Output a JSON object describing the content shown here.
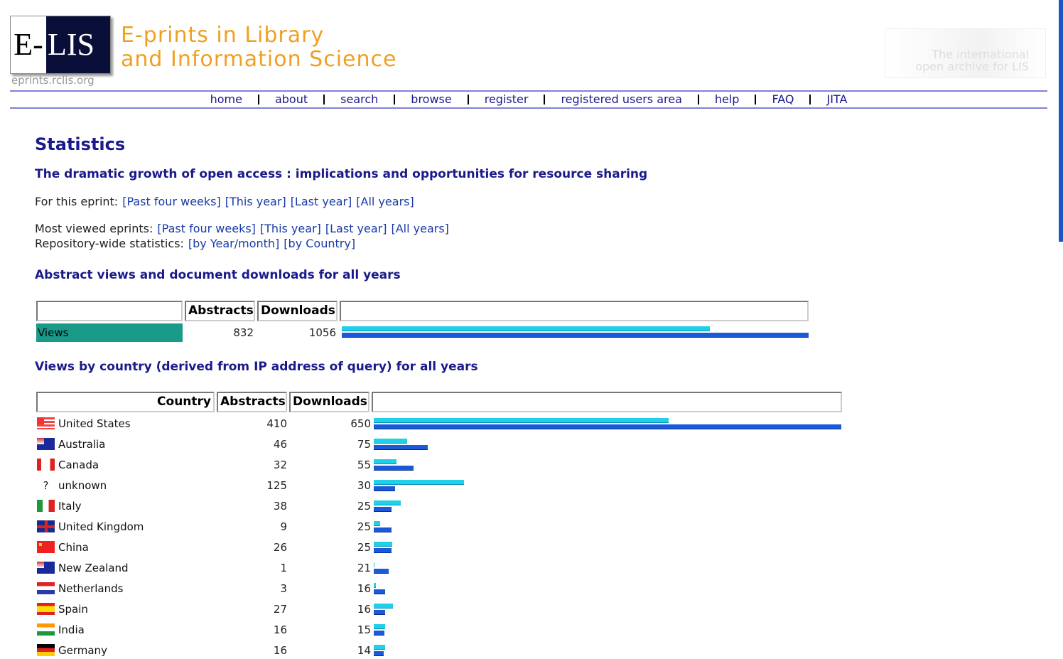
{
  "header": {
    "logo_left": "E-",
    "logo_right": "LIS",
    "logo_url": "eprints.rclis.org",
    "title_line1": "E-prints in Library",
    "title_line2": "and Information Science",
    "tagline_line1": "The international",
    "tagline_line2": "open archive for LIS"
  },
  "nav": [
    "home",
    "about",
    "search",
    "browse",
    "register",
    "registered users area",
    "help",
    "FAQ",
    "JITA"
  ],
  "page_title": "Statistics",
  "eprint_title": "The dramatic growth of open access : implications and opportunities for resource sharing",
  "link_groups": [
    {
      "label": "For this eprint:",
      "links": [
        "[Past four weeks]",
        "[This year]",
        "[Last year]",
        "[All years]"
      ]
    },
    {
      "label": "Most viewed eprints:",
      "links": [
        "[Past four weeks]",
        "[This year]",
        "[Last year]",
        "[All years]"
      ]
    },
    {
      "label": "Repository-wide statistics:",
      "links": [
        "[by Year/month]",
        "[by Country]"
      ]
    }
  ],
  "summary": {
    "heading": "Abstract views and document downloads for all years",
    "headers": [
      "Abstracts",
      "Downloads"
    ],
    "rows": [
      {
        "label": "Views",
        "abstracts": 832,
        "downloads": 1056
      }
    ]
  },
  "countries": {
    "heading": "Views by country (derived from IP address of query) for all years",
    "headers": [
      "Country",
      "Abstracts",
      "Downloads"
    ],
    "rows": [
      {
        "country": "United States",
        "abstracts": 410,
        "downloads": 650
      },
      {
        "country": "Australia",
        "abstracts": 46,
        "downloads": 75
      },
      {
        "country": "Canada",
        "abstracts": 32,
        "downloads": 55
      },
      {
        "country": "unknown",
        "flag": "?",
        "abstracts": 125,
        "downloads": 30
      },
      {
        "country": "Italy",
        "abstracts": 38,
        "downloads": 25
      },
      {
        "country": "United Kingdom",
        "abstracts": 9,
        "downloads": 25
      },
      {
        "country": "China",
        "abstracts": 26,
        "downloads": 25
      },
      {
        "country": "New Zealand",
        "abstracts": 1,
        "downloads": 21
      },
      {
        "country": "Netherlands",
        "abstracts": 3,
        "downloads": 16
      },
      {
        "country": "Spain",
        "abstracts": 27,
        "downloads": 16
      },
      {
        "country": "India",
        "abstracts": 16,
        "downloads": 15
      },
      {
        "country": "Germany",
        "abstracts": 16,
        "downloads": 14
      }
    ]
  }
}
